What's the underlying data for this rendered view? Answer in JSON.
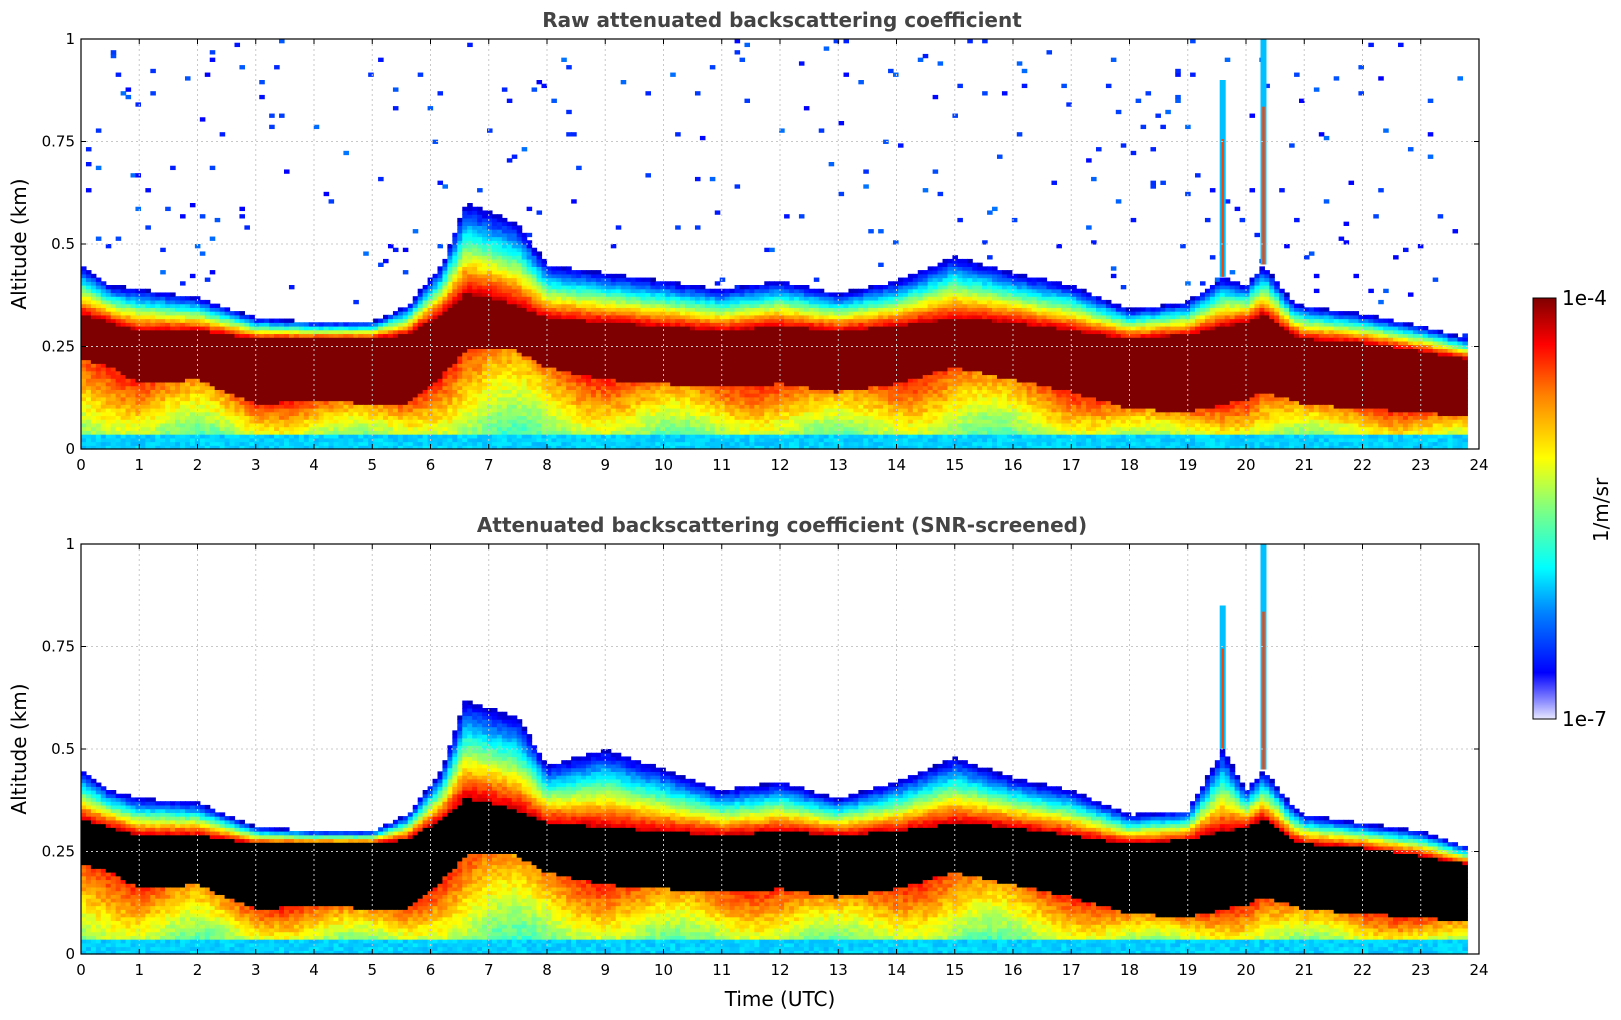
{
  "chart_data": [
    {
      "type": "heatmap",
      "title": "Raw attenuated backscattering coefficient",
      "xlabel": "",
      "ylabel": "Altitude (km)",
      "xlim": [
        0,
        24
      ],
      "ylim": [
        0,
        1
      ],
      "xticks": [
        "0",
        "1",
        "2",
        "3",
        "4",
        "5",
        "6",
        "7",
        "8",
        "9",
        "10",
        "11",
        "12",
        "13",
        "14",
        "15",
        "16",
        "17",
        "18",
        "19",
        "20",
        "21",
        "22",
        "23",
        "24"
      ],
      "yticks": [
        "0",
        "0.25",
        "0.5",
        "0.75",
        "1"
      ],
      "grid": true,
      "screened": false,
      "layer_profile": {
        "time_utc": [
          0,
          0.5,
          1,
          2,
          3,
          4,
          5,
          5.6,
          6.2,
          6.6,
          7,
          7.5,
          8,
          9,
          10,
          11,
          12,
          13,
          14,
          15,
          16,
          17,
          18,
          19,
          19.6,
          20,
          20.3,
          20.8,
          21,
          22,
          23,
          23.8
        ],
        "core_bottom_km": [
          0.22,
          0.2,
          0.16,
          0.17,
          0.11,
          0.12,
          0.11,
          0.11,
          0.18,
          0.24,
          0.25,
          0.24,
          0.2,
          0.17,
          0.16,
          0.15,
          0.16,
          0.14,
          0.16,
          0.2,
          0.17,
          0.14,
          0.1,
          0.09,
          0.11,
          0.12,
          0.14,
          0.12,
          0.11,
          0.1,
          0.09,
          0.08
        ],
        "core_top_km": [
          0.33,
          0.31,
          0.29,
          0.29,
          0.27,
          0.27,
          0.27,
          0.28,
          0.33,
          0.38,
          0.37,
          0.35,
          0.32,
          0.31,
          0.3,
          0.29,
          0.3,
          0.29,
          0.3,
          0.32,
          0.31,
          0.29,
          0.27,
          0.28,
          0.3,
          0.31,
          0.33,
          0.28,
          0.27,
          0.26,
          0.24,
          0.22
        ],
        "signal_top_km": [
          0.45,
          0.4,
          0.39,
          0.37,
          0.32,
          0.31,
          0.31,
          0.35,
          0.45,
          0.6,
          0.58,
          0.55,
          0.45,
          0.43,
          0.41,
          0.39,
          0.41,
          0.38,
          0.41,
          0.47,
          0.43,
          0.4,
          0.34,
          0.36,
          0.42,
          0.4,
          0.45,
          0.36,
          0.35,
          0.33,
          0.3,
          0.27
        ]
      },
      "plumes": [
        {
          "time_utc": 19.6,
          "top_km": 0.9
        },
        {
          "time_utc": 20.3,
          "top_km": 1.0
        }
      ]
    },
    {
      "type": "heatmap",
      "title": "Attenuated backscattering coefficient (SNR-screened)",
      "xlabel": "Time (UTC)",
      "ylabel": "Altitude (km)",
      "xlim": [
        0,
        24
      ],
      "ylim": [
        0,
        1
      ],
      "xticks": [
        "0",
        "1",
        "2",
        "3",
        "4",
        "5",
        "6",
        "7",
        "8",
        "9",
        "10",
        "11",
        "12",
        "13",
        "14",
        "15",
        "16",
        "17",
        "18",
        "19",
        "20",
        "21",
        "22",
        "23",
        "24"
      ],
      "yticks": [
        "0",
        "0.25",
        "0.5",
        "0.75",
        "1"
      ],
      "grid": true,
      "screened": true,
      "layer_profile": {
        "time_utc": [
          0,
          0.5,
          1,
          2,
          3,
          4,
          5,
          5.6,
          6.2,
          6.6,
          7,
          7.5,
          8,
          9,
          10,
          11,
          12,
          13,
          14,
          15,
          16,
          17,
          18,
          19,
          19.6,
          20,
          20.3,
          20.8,
          21,
          22,
          23,
          23.8
        ],
        "core_bottom_km": [
          0.22,
          0.2,
          0.16,
          0.17,
          0.11,
          0.12,
          0.11,
          0.11,
          0.18,
          0.24,
          0.25,
          0.24,
          0.2,
          0.17,
          0.16,
          0.15,
          0.16,
          0.14,
          0.16,
          0.2,
          0.17,
          0.14,
          0.1,
          0.09,
          0.11,
          0.12,
          0.14,
          0.12,
          0.11,
          0.1,
          0.09,
          0.08
        ],
        "core_top_km": [
          0.33,
          0.31,
          0.29,
          0.29,
          0.27,
          0.27,
          0.27,
          0.28,
          0.33,
          0.38,
          0.37,
          0.35,
          0.32,
          0.31,
          0.3,
          0.29,
          0.3,
          0.29,
          0.3,
          0.32,
          0.31,
          0.29,
          0.27,
          0.28,
          0.3,
          0.31,
          0.33,
          0.28,
          0.27,
          0.26,
          0.24,
          0.22
        ],
        "signal_top_km": [
          0.45,
          0.4,
          0.38,
          0.37,
          0.31,
          0.3,
          0.3,
          0.34,
          0.45,
          0.62,
          0.6,
          0.58,
          0.46,
          0.5,
          0.45,
          0.4,
          0.42,
          0.38,
          0.42,
          0.48,
          0.43,
          0.4,
          0.34,
          0.35,
          0.5,
          0.4,
          0.45,
          0.36,
          0.34,
          0.32,
          0.3,
          0.26
        ]
      },
      "plumes": [
        {
          "time_utc": 19.6,
          "top_km": 0.85
        },
        {
          "time_utc": 20.3,
          "top_km": 1.0
        }
      ]
    }
  ],
  "colorbar": {
    "label": "1/m/sr",
    "max_label": "1e-4",
    "min_label": "1e-7",
    "scale": "log",
    "range": [
      1e-07,
      0.0001
    ],
    "colormap": "jet"
  },
  "colors": {
    "title": "#444444",
    "grid": "#c8c8c8",
    "saturated_raw": "#7f0000",
    "saturated_screened": "#000000"
  }
}
